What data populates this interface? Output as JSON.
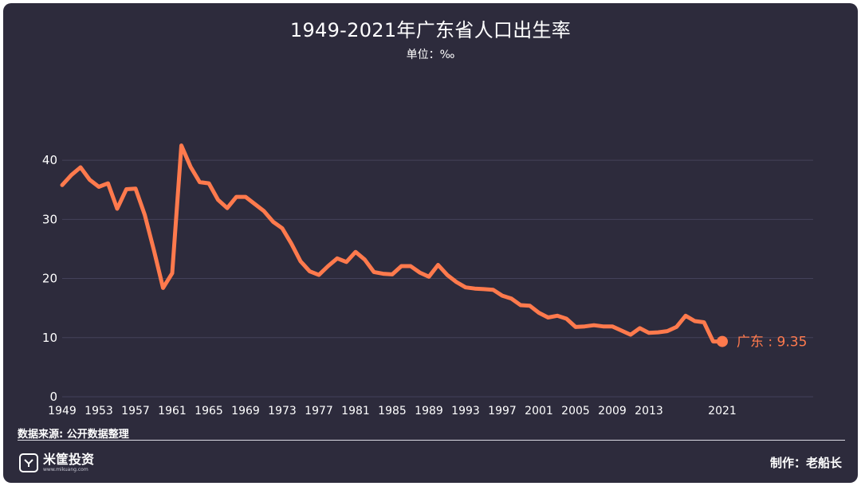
{
  "chart_data": {
    "type": "line",
    "title": "1949-2021年广东省人口出生率",
    "subtitle": "单位：‰",
    "xlabel": "",
    "ylabel": "",
    "xlim": [
      1949,
      2021
    ],
    "ylim": [
      0,
      45
    ],
    "yticks": [
      0,
      10,
      20,
      30,
      40
    ],
    "xticks": [
      1949,
      1953,
      1957,
      1961,
      1965,
      1969,
      1973,
      1977,
      1981,
      1985,
      1989,
      1993,
      1997,
      2001,
      2005,
      2009,
      2013,
      2021
    ],
    "grid": true,
    "line_color": "#ff7a4d",
    "series": [
      {
        "name": "广东",
        "x": [
          1949,
          1950,
          1951,
          1952,
          1953,
          1954,
          1955,
          1956,
          1957,
          1958,
          1959,
          1960,
          1961,
          1962,
          1963,
          1964,
          1965,
          1966,
          1967,
          1968,
          1969,
          1970,
          1971,
          1972,
          1973,
          1974,
          1975,
          1976,
          1977,
          1978,
          1979,
          1980,
          1981,
          1982,
          1983,
          1984,
          1985,
          1986,
          1987,
          1988,
          1989,
          1990,
          1991,
          1992,
          1993,
          1994,
          1995,
          1996,
          1997,
          1998,
          1999,
          2000,
          2001,
          2002,
          2003,
          2004,
          2005,
          2006,
          2007,
          2008,
          2009,
          2010,
          2011,
          2012,
          2013,
          2014,
          2015,
          2016,
          2017,
          2018,
          2019,
          2020,
          2021
        ],
        "values": [
          35.8,
          37.5,
          38.8,
          36.7,
          35.5,
          36.1,
          31.8,
          35.1,
          35.2,
          30.8,
          24.8,
          18.4,
          20.9,
          42.5,
          38.9,
          36.3,
          36.1,
          33.3,
          31.9,
          33.8,
          33.8,
          32.6,
          31.4,
          29.6,
          28.5,
          25.9,
          22.9,
          21.2,
          20.6,
          22.1,
          23.4,
          22.8,
          24.5,
          23.2,
          21.1,
          20.8,
          20.7,
          22.1,
          22.1,
          21.0,
          20.3,
          22.3,
          20.6,
          19.4,
          18.5,
          18.3,
          18.2,
          18.1,
          17.1,
          16.6,
          15.5,
          15.4,
          14.2,
          13.4,
          13.7,
          13.2,
          11.8,
          11.9,
          12.1,
          11.9,
          11.9,
          11.2,
          10.5,
          11.6,
          10.8,
          10.9,
          11.1,
          11.8,
          13.7,
          12.8,
          12.6,
          9.35,
          9.35
        ],
        "end_label": "广东 : 9.35"
      }
    ]
  },
  "footer": {
    "source": "数据来源: 公开数据整理",
    "brand_name": "米筐投资",
    "brand_url": "www.mikuang.com",
    "author": "制作：老船长"
  }
}
